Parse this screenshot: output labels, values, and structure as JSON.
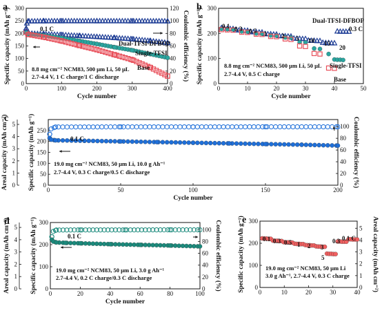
{
  "chart_data": [
    {
      "panel_label": "a",
      "type": "scatter",
      "xlabel": "Cycle number",
      "ylabel": "Specific capacity (mAh g⁻¹)",
      "y2label": "Coulombic efficiency (%)",
      "xlim": [
        0,
        400
      ],
      "ylim": [
        0,
        300
      ],
      "y2lim": [
        0,
        120
      ],
      "xticks": [
        "0",
        "100",
        "200",
        "300",
        "400"
      ],
      "yticks": [
        "0",
        "50",
        "100",
        "150",
        "200",
        "250",
        "300"
      ],
      "y2ticks": [
        "0",
        "20",
        "40",
        "60",
        "80",
        "100",
        "120"
      ],
      "annotations": [
        "0.1 C"
      ],
      "notes": [
        "8.8 mg cm⁻² NCM83, 500 μm Li, 50 μL",
        "2.7-4.4 V, 1 C charge/1 C discharge"
      ],
      "series": [
        {
          "name": "Dual-TFSI-DFBOP",
          "color": "#1f3e96",
          "marker": "triangle",
          "x": [
            0,
            5,
            50,
            100,
            150,
            200,
            250,
            300,
            350,
            400
          ],
          "y": [
            210,
            200,
            197,
            194,
            190,
            186,
            182,
            177,
            170,
            162
          ]
        },
        {
          "name": "Single-TFSI",
          "color": "#2aa6a0",
          "marker": "circle",
          "x": [
            0,
            5,
            50,
            100,
            150,
            200,
            250,
            300,
            350,
            400
          ],
          "y": [
            205,
            198,
            192,
            182,
            170,
            158,
            145,
            133,
            118,
            103
          ]
        },
        {
          "name": "Base",
          "color": "#e8505b",
          "marker": "square",
          "x": [
            0,
            5,
            50,
            100,
            150,
            200,
            250,
            300,
            350,
            400
          ],
          "y": [
            205,
            196,
            185,
            170,
            152,
            135,
            115,
            95,
            65,
            30
          ]
        },
        {
          "name": "CE",
          "color": "#1f3e96",
          "marker": "triangle-open",
          "axis": "right",
          "x": [
            0,
            2,
            5,
            50,
            100,
            200,
            300,
            400
          ],
          "y": [
            88,
            96,
            99.2,
            99.5,
            99.6,
            99.6,
            99.5,
            99.4
          ]
        }
      ]
    },
    {
      "panel_label": "b",
      "type": "scatter",
      "xlabel": "Cycle number",
      "ylabel": "Specific capacity (mAh g⁻¹)",
      "xlim": [
        0,
        50
      ],
      "ylim": [
        0,
        300
      ],
      "xticks": [
        "0",
        "10",
        "20",
        "30",
        "40",
        "50"
      ],
      "yticks": [
        "0",
        "100",
        "200",
        "300"
      ],
      "annotations": [
        "0.1",
        "0.3",
        "0.5",
        "1",
        "2",
        "5",
        "10",
        "15",
        "20",
        "0.3 C"
      ],
      "notes": [
        "8.8 mg cm⁻² NCM83, 500 μm Li, 50 μL",
        "2.7-4.4 V, 0.5 C charge"
      ],
      "series": [
        {
          "name": "Dual-TFSI-DFBOP",
          "color": "#1f3e96",
          "marker": "triangle",
          "x": [
            1,
            2,
            3,
            4,
            5,
            6,
            7,
            8,
            9,
            10,
            11,
            12,
            13,
            14,
            15,
            16,
            17,
            18,
            19,
            20,
            21,
            22,
            23,
            24,
            25,
            26,
            27,
            28,
            29,
            30,
            31,
            32,
            33,
            34,
            35,
            36,
            37,
            38,
            39,
            40,
            41,
            42,
            43,
            44,
            45
          ],
          "y": [
            222,
            220,
            219,
            218,
            218,
            213,
            212,
            212,
            211,
            211,
            206,
            205,
            205,
            204,
            204,
            198,
            197,
            197,
            196,
            196,
            190,
            189,
            189,
            188,
            188,
            180,
            179,
            179,
            178,
            178,
            172,
            171,
            171,
            170,
            170,
            163,
            162,
            162,
            161,
            161,
            208,
            207,
            207,
            207,
            207
          ]
        },
        {
          "name": "Single-TFSI",
          "color": "#2aa6a0",
          "marker": "circle",
          "x": [
            1,
            3,
            5,
            8,
            10,
            13,
            15,
            18,
            20,
            23,
            25,
            28,
            30,
            33,
            35,
            38,
            40,
            41,
            42,
            43
          ],
          "y": [
            218,
            217,
            216,
            208,
            207,
            200,
            199,
            192,
            191,
            184,
            183,
            165,
            164,
            140,
            138,
            118,
            96,
            95,
            95,
            94
          ]
        },
        {
          "name": "Base",
          "color": "#e8505b",
          "marker": "square",
          "x": [
            1,
            3,
            5,
            8,
            10,
            13,
            15,
            18,
            20,
            23,
            25,
            28,
            30,
            33,
            35,
            38,
            40
          ],
          "y": [
            215,
            214,
            213,
            205,
            204,
            197,
            196,
            188,
            187,
            178,
            176,
            150,
            148,
            120,
            118,
            62,
            61
          ]
        }
      ]
    },
    {
      "panel_label": "c",
      "type": "scatter",
      "xlabel": "Cycle number",
      "ylabel": "Areal capacity (mAh cm⁻²)",
      "y1label": "Specific capacity (mAh g⁻¹)",
      "y2label": "Coulombic efficiency (%)",
      "xlim": [
        0,
        200
      ],
      "ylim": [
        0,
        300
      ],
      "y0lim": [
        0,
        5
      ],
      "y2lim": [
        0,
        120
      ],
      "xticks": [
        "0",
        "50",
        "100",
        "150",
        "200"
      ],
      "yticks": [
        "0",
        "50",
        "100",
        "150",
        "200",
        "250"
      ],
      "y0ticks": [
        "0",
        "1",
        "2",
        "3",
        "4",
        "5"
      ],
      "y2ticks": [
        "0",
        "20",
        "40",
        "60",
        "80",
        "100"
      ],
      "annotations": [
        "0.1 C"
      ],
      "notes": [
        "19.0 mg cm⁻² NCM83, 50 μm Li, 10.0 g Ah⁻¹",
        "2.7-4.4 V, 0.3 C charge/0.5 C discharge"
      ],
      "series": [
        {
          "name": "Capacity",
          "color": "#1e6fd9",
          "marker": "circle",
          "x": [
            1,
            2,
            5,
            25,
            50,
            75,
            100,
            125,
            150,
            175,
            200
          ],
          "y": [
            215,
            208,
            205,
            203,
            200,
            197,
            194,
            191,
            188,
            185,
            181
          ]
        },
        {
          "name": "CE",
          "color": "#1e6fd9",
          "marker": "circle-open",
          "axis": "right",
          "x": [
            1,
            2,
            5,
            50,
            100,
            150,
            200
          ],
          "y": [
            87,
            96,
            99.3,
            99.5,
            99.5,
            99.6,
            99.6
          ]
        }
      ]
    },
    {
      "panel_label": "d",
      "type": "scatter",
      "xlabel": "Cycle number",
      "ylabel": "Areal capacity (mAh cm⁻²)",
      "y1label": "Specific capacity (mAh g⁻¹)",
      "y2label": "Coulombic efficiency (%)",
      "xlim": [
        0,
        100
      ],
      "ylim": [
        0,
        300
      ],
      "y0lim": [
        0,
        5
      ],
      "y2lim": [
        0,
        120
      ],
      "xticks": [
        "0",
        "20",
        "40",
        "60",
        "80",
        "100"
      ],
      "yticks": [
        "0",
        "100",
        "200",
        "300"
      ],
      "y0ticks": [
        "0",
        "1",
        "2",
        "3",
        "4",
        "5"
      ],
      "y2ticks": [
        "0",
        "20",
        "40",
        "60",
        "80",
        "100"
      ],
      "annotations": [
        "0.1 C"
      ],
      "notes": [
        "19.0 mg cm⁻² NCM83, 50 μm Li, 3.0 g Ah⁻¹",
        "2.7-4.4 V, 0.2 C charge/0.3 C discharge"
      ],
      "series": [
        {
          "name": "Capacity",
          "color": "#1b8a7c",
          "marker": "circle",
          "x": [
            1,
            2,
            4,
            10,
            20,
            40,
            60,
            80,
            100
          ],
          "y": [
            222,
            214,
            210,
            208,
            206,
            202,
            199,
            196,
            192
          ]
        },
        {
          "name": "CE",
          "color": "#1b8a7c",
          "marker": "circle-open",
          "axis": "right",
          "x": [
            1,
            2,
            4,
            20,
            50,
            80,
            100
          ],
          "y": [
            88,
            97,
            99.3,
            99.5,
            99.5,
            99.6,
            99.6
          ]
        }
      ]
    },
    {
      "panel_label": "e",
      "type": "scatter",
      "xlabel": "",
      "ylabel": "Specific capacity (mAh g⁻¹)",
      "y2label": "Areal capacity (mAh cm⁻²)",
      "xlim": [
        0,
        45
      ],
      "ylim": [
        0,
        300
      ],
      "y2lim": [
        0,
        5
      ],
      "xticks": [
        "0",
        "10",
        "20",
        "30",
        "40"
      ],
      "yticks": [
        "0",
        "100",
        "200",
        "300"
      ],
      "y2ticks": [
        "0",
        "1",
        "2",
        "3",
        "4",
        "5"
      ],
      "annotations": [
        "0.1",
        "0.3",
        "0.5",
        "1",
        "2",
        "3",
        "5",
        "0.3",
        "0.1 C"
      ],
      "notes": [
        "19.0 mg cm⁻² NCM83, 50 μm Li",
        "3.0 g Ah⁻¹, 2.7-4.4 V, 0.3 C charge"
      ],
      "series": [
        {
          "name": "Capacity",
          "color": "#f26060",
          "marker": "circle",
          "x": [
            1,
            2,
            3,
            4,
            5,
            6,
            7,
            8,
            9,
            10,
            11,
            12,
            13,
            14,
            15,
            16,
            17,
            18,
            19,
            20,
            21,
            22,
            23,
            24,
            25,
            26,
            27,
            28,
            29,
            30,
            31,
            32,
            33,
            34,
            35,
            36,
            37,
            38,
            39,
            40,
            41,
            42,
            43,
            44,
            45
          ],
          "y": [
            222,
            221,
            221,
            220,
            220,
            212,
            211,
            211,
            210,
            210,
            205,
            204,
            204,
            203,
            203,
            198,
            197,
            197,
            196,
            196,
            192,
            191,
            191,
            190,
            190,
            186,
            185,
            185,
            184,
            184,
            153,
            152,
            152,
            151,
            151,
            208,
            208,
            207,
            207,
            207,
            218,
            218,
            217,
            217,
            217
          ]
        }
      ]
    }
  ],
  "series_labels": {
    "a_dual": "Dual-TFSI-DFBOP",
    "a_single": "Single-TFSI",
    "a_base": "Base",
    "b_dual": "Dual-TFSI-DFBOP",
    "b_single": "Single-TFSI",
    "b_base": "Base"
  }
}
